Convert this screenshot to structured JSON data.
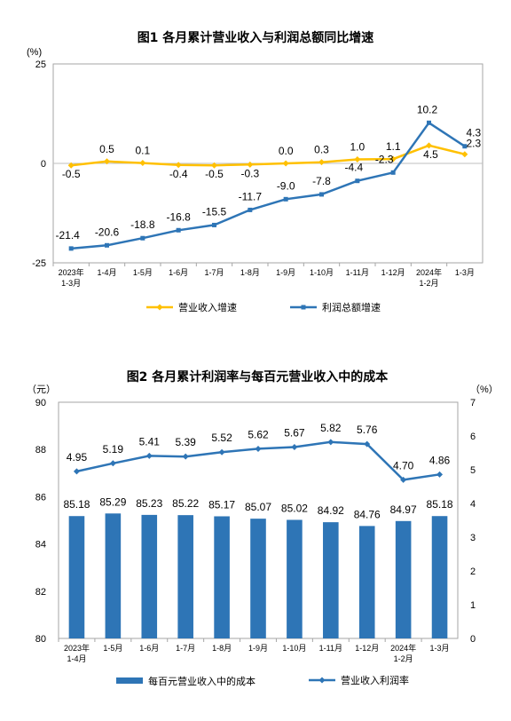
{
  "chart_data": [
    {
      "type": "line",
      "title": "图1  各月累计营业收入与利润总额同比增速",
      "unit": "(%)",
      "categories": [
        [
          "2023年",
          "1-3月"
        ],
        [
          "1-4月"
        ],
        [
          "1-5月"
        ],
        [
          "1-6月"
        ],
        [
          "1-7月"
        ],
        [
          "1-8月"
        ],
        [
          "1-9月"
        ],
        [
          "1-10月"
        ],
        [
          "1-11月"
        ],
        [
          "1-12月"
        ],
        [
          "2024年",
          "1-2月"
        ],
        [
          "1-3月"
        ]
      ],
      "ylim": [
        -25,
        25
      ],
      "yticks": [
        "25",
        "0",
        "-25"
      ],
      "legend_position": "bottom",
      "series": [
        {
          "name": "营业收入增速",
          "color": "#FFC000",
          "values": [
            -0.5,
            0.5,
            0.1,
            -0.4,
            -0.5,
            -0.3,
            0.0,
            0.3,
            1.0,
            1.1,
            4.5,
            2.3
          ],
          "labels": [
            "-0.5",
            "0.5",
            "0.1",
            "-0.4",
            "-0.5",
            "-0.3",
            "0.0",
            "0.3",
            "1.0",
            "1.1",
            "4.5",
            "2.3"
          ]
        },
        {
          "name": "利润总额增速",
          "color": "#2E75B6",
          "values": [
            -21.4,
            -20.6,
            -18.8,
            -16.8,
            -15.5,
            -11.7,
            -9.0,
            -7.8,
            -4.4,
            -2.3,
            10.2,
            4.3
          ],
          "labels": [
            "-21.4",
            "-20.6",
            "-18.8",
            "-16.8",
            "-15.5",
            "-11.7",
            "-9.0",
            "-7.8",
            "-4.4",
            "-2.3",
            "10.2",
            "4.3"
          ]
        }
      ]
    },
    {
      "type": "bar",
      "title": "图2  各月累计利润率与每百元营业收入中的成本",
      "unit_left": "（元）",
      "unit_right": "（%）",
      "categories": [
        [
          "2023年",
          "1-4月"
        ],
        [
          "1-5月"
        ],
        [
          "1-6月"
        ],
        [
          "1-7月"
        ],
        [
          "1-8月"
        ],
        [
          "1-9月"
        ],
        [
          "1-10月"
        ],
        [
          "1-11月"
        ],
        [
          "1-12月"
        ],
        [
          "2024年",
          "1-2月"
        ],
        [
          "1-3月"
        ]
      ],
      "ylim_left": [
        80,
        90
      ],
      "yticks_left": [
        "80",
        "82",
        "84",
        "86",
        "88",
        "90"
      ],
      "ylim_right": [
        0,
        7
      ],
      "yticks_right": [
        "0",
        "1",
        "2",
        "3",
        "4",
        "5",
        "6",
        "7"
      ],
      "legend_position": "bottom",
      "series": [
        {
          "name": "每百元营业收入中的成本",
          "type": "bar",
          "axis": "left",
          "color": "#2E75B6",
          "values": [
            85.18,
            85.29,
            85.23,
            85.22,
            85.17,
            85.07,
            85.02,
            84.92,
            84.76,
            84.97,
            85.18
          ],
          "labels": [
            "85.18",
            "85.29",
            "85.23",
            "85.22",
            "85.17",
            "85.07",
            "85.02",
            "84.92",
            "84.76",
            "84.97",
            "85.18"
          ]
        },
        {
          "name": "营业收入利润率",
          "type": "line",
          "axis": "right",
          "color": "#2E75B6",
          "values": [
            4.95,
            5.19,
            5.41,
            5.39,
            5.52,
            5.62,
            5.67,
            5.82,
            5.76,
            4.7,
            4.86
          ],
          "labels": [
            "4.95",
            "5.19",
            "5.41",
            "5.39",
            "5.52",
            "5.62",
            "5.67",
            "5.82",
            "5.76",
            "4.70",
            "4.86"
          ]
        }
      ]
    }
  ]
}
